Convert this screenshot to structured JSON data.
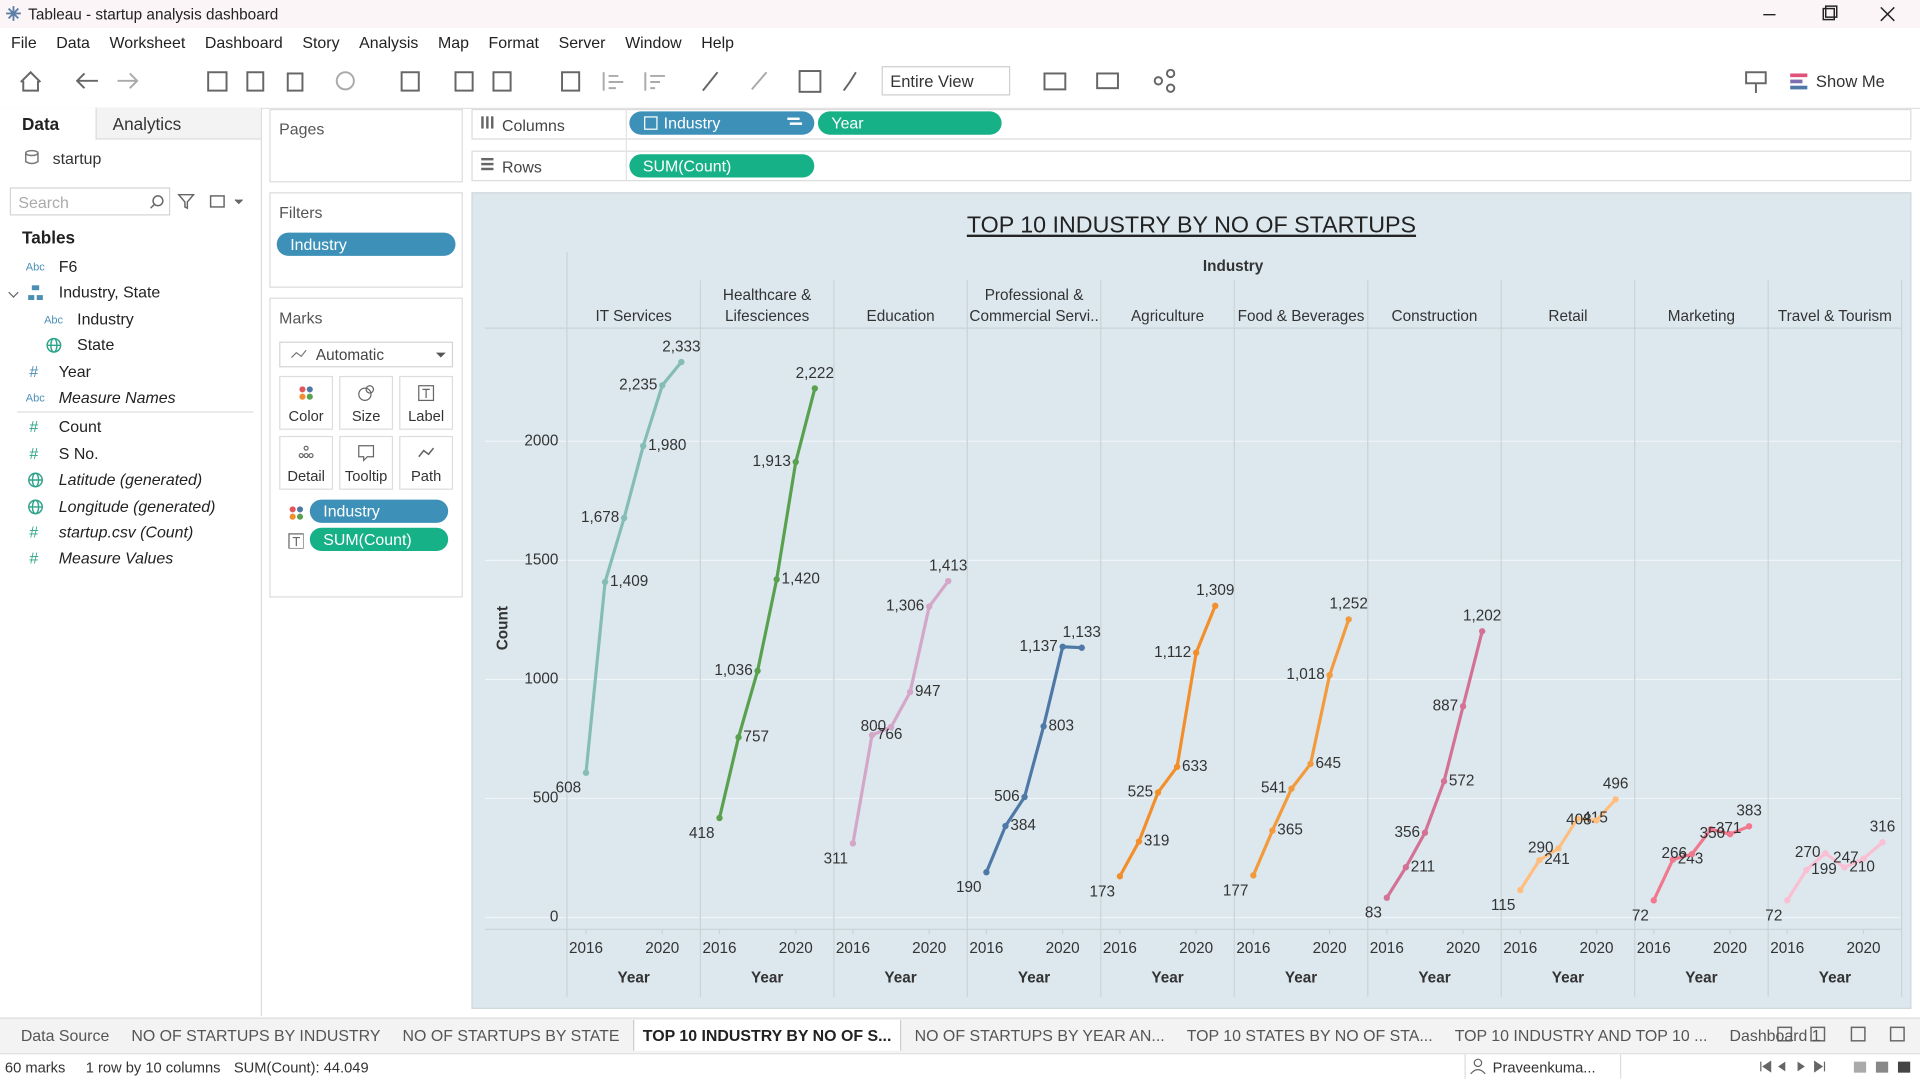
{
  "window": {
    "title": "Tableau - startup analysis dashboard"
  },
  "menu": [
    "File",
    "Data",
    "Worksheet",
    "Dashboard",
    "Story",
    "Analysis",
    "Map",
    "Format",
    "Server",
    "Window",
    "Help"
  ],
  "toolbar": {
    "fit": "Entire View",
    "show_me": "Show Me"
  },
  "data_pane": {
    "tabs": [
      "Data",
      "Analytics"
    ],
    "source": "startup",
    "search_placeholder": "Search",
    "tables_heading": "Tables",
    "dimensions": [
      {
        "icon": "Abc",
        "name": "F6"
      },
      {
        "kind": "hierarchy",
        "name": "Industry, State"
      },
      {
        "icon": "Abc",
        "name": "Industry",
        "indent": true
      },
      {
        "kind": "geo",
        "name": "State",
        "indent": true
      },
      {
        "icon": "#",
        "name": "Year"
      },
      {
        "icon": "Abc",
        "name": "Measure Names",
        "italic": true
      }
    ],
    "measures": [
      {
        "icon": "#",
        "name": "Count"
      },
      {
        "icon": "#",
        "name": "S No."
      },
      {
        "kind": "geo",
        "name": "Latitude (generated)",
        "italic": true
      },
      {
        "kind": "geo",
        "name": "Longitude (generated)",
        "italic": true
      },
      {
        "icon": "#",
        "name": "startup.csv (Count)",
        "italic": true
      },
      {
        "icon": "#",
        "name": "Measure Values",
        "italic": true
      }
    ]
  },
  "pages": {
    "title": "Pages"
  },
  "filters": {
    "title": "Filters",
    "pills": [
      "Industry"
    ]
  },
  "marks": {
    "title": "Marks",
    "type": "Automatic",
    "buttons": [
      "Color",
      "Size",
      "Label",
      "Detail",
      "Tooltip",
      "Path"
    ],
    "pills": [
      "Industry",
      "SUM(Count)"
    ]
  },
  "shelves": {
    "columns": {
      "label": "Columns",
      "pills": [
        "Industry",
        "Year"
      ]
    },
    "rows": {
      "label": "Rows",
      "pills": [
        "SUM(Count)"
      ]
    }
  },
  "chart_data": {
    "type": "line",
    "title": "TOP 10 INDUSTRY BY NO OF STARTUPS",
    "facet_label": "Industry",
    "x_label": "Year",
    "y_label": "Count",
    "x": [
      2016,
      2017,
      2018,
      2019,
      2020,
      2021
    ],
    "xlim": [
      2015,
      2022
    ],
    "xticks": [
      2016,
      2020
    ],
    "ylim": [
      -50,
      2470
    ],
    "yticks": [
      0,
      500,
      1000,
      1500,
      2000
    ],
    "grid": true,
    "series": [
      {
        "name": "IT Services",
        "color": "#86bcb6",
        "values": [
          608,
          1409,
          1678,
          1980,
          2235,
          2333
        ],
        "value_labels": [
          "608",
          "1,409",
          "1,678",
          "1,980",
          "2,235",
          "2,333"
        ]
      },
      {
        "name": "Healthcare & Lifesciences",
        "color": "#59a14f",
        "values": [
          418,
          757,
          1036,
          1420,
          1913,
          2222
        ],
        "value_labels": [
          "418",
          "757",
          "1,036",
          "1,420",
          "1,913",
          "2,222"
        ]
      },
      {
        "name": "Education",
        "color": "#d4a6c8",
        "values": [
          311,
          766,
          800,
          947,
          1306,
          1413
        ],
        "value_labels": [
          "311",
          "766",
          "800",
          "947",
          "1,306",
          "1,413"
        ]
      },
      {
        "name": "Professional & Commercial Servi..",
        "color": "#4e79a7",
        "values": [
          190,
          384,
          506,
          803,
          1137,
          1133
        ],
        "value_labels": [
          "190",
          "384",
          "506",
          "803",
          "1,137",
          "1,133"
        ]
      },
      {
        "name": "Agriculture",
        "color": "#f28e2b",
        "values": [
          173,
          319,
          525,
          633,
          1112,
          1309
        ],
        "value_labels": [
          "173",
          "319",
          "525",
          "633",
          "1,112",
          "1,309"
        ]
      },
      {
        "name": "Food & Beverages",
        "color": "#f39a3c",
        "values": [
          177,
          365,
          541,
          645,
          1018,
          1252
        ],
        "value_labels": [
          "177",
          "365",
          "541",
          "645",
          "1,018",
          "1,252"
        ]
      },
      {
        "name": "Construction",
        "color": "#d37295",
        "values": [
          83,
          211,
          356,
          572,
          887,
          1202
        ],
        "value_labels": [
          "83",
          "211",
          "356",
          "572",
          "887",
          "1,202"
        ]
      },
      {
        "name": "Retail",
        "color": "#ffbe7d",
        "values": [
          115,
          241,
          290,
          415,
          408,
          496
        ],
        "value_labels": [
          "115",
          "241",
          "290",
          "415",
          "408",
          "496"
        ]
      },
      {
        "name": "Marketing",
        "color": "#f1788d",
        "values": [
          72,
          243,
          266,
          371,
          350,
          383
        ],
        "value_labels": [
          "72",
          "243",
          "266",
          "371",
          "350",
          "383"
        ]
      },
      {
        "name": "Travel & Tourism",
        "color": "#fabfd2",
        "values": [
          72,
          199,
          270,
          210,
          247,
          316
        ],
        "value_labels": [
          "72",
          "199",
          "270",
          "210",
          "247",
          "316"
        ]
      }
    ]
  },
  "sheet_tabs": {
    "active": 3,
    "tabs": [
      "Data Source",
      "NO OF STARTUPS BY INDUSTRY",
      "NO OF STARTUPS BY STATE",
      "TOP 10 INDUSTRY BY NO OF S...",
      "NO OF STARTUPS BY YEAR AN...",
      "TOP 10 STATES BY NO OF STA...",
      "TOP 10 INDUSTRY AND TOP 10 ...",
      "Dashboard 1"
    ]
  },
  "status_bar": {
    "marks": "60 marks",
    "layout": "1 row by 10 columns",
    "sum": "SUM(Count): 44.049",
    "user": "Praveenkuma..."
  }
}
